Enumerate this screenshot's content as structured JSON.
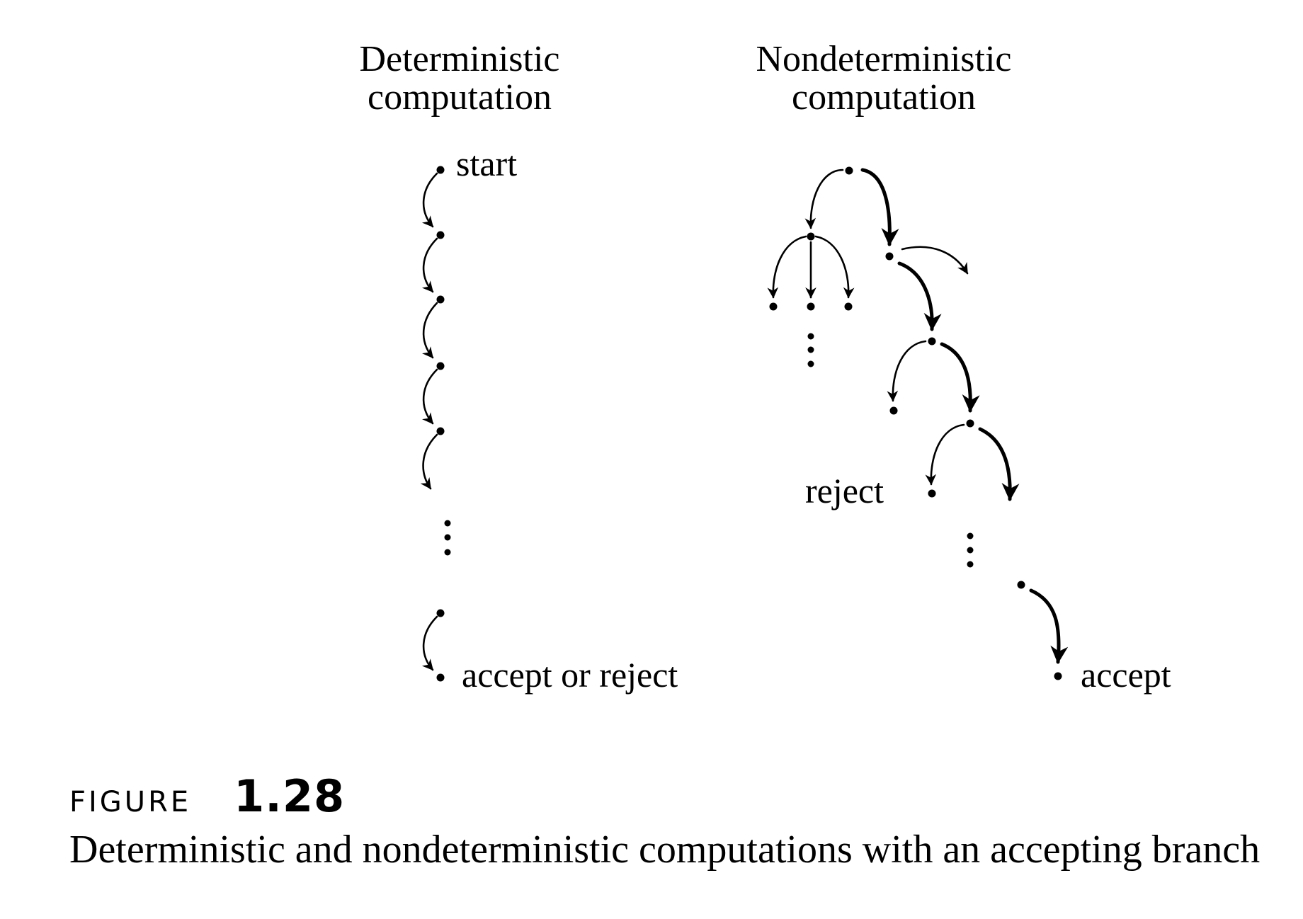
{
  "deterministic": {
    "title_line1": "Deterministic",
    "title_line2": "computation",
    "start_label": "start",
    "end_label": "accept or reject"
  },
  "nondeterministic": {
    "title_line1": "Nondeterministic",
    "title_line2": "computation",
    "reject_label": "reject",
    "accept_label": "accept"
  },
  "caption": {
    "figure_word": "FIGURE",
    "figure_number": "1.28",
    "text": "Deterministic and nondeterministic computations with an accepting branch"
  },
  "colors": {
    "ink": "#000000",
    "background": "#ffffff"
  }
}
